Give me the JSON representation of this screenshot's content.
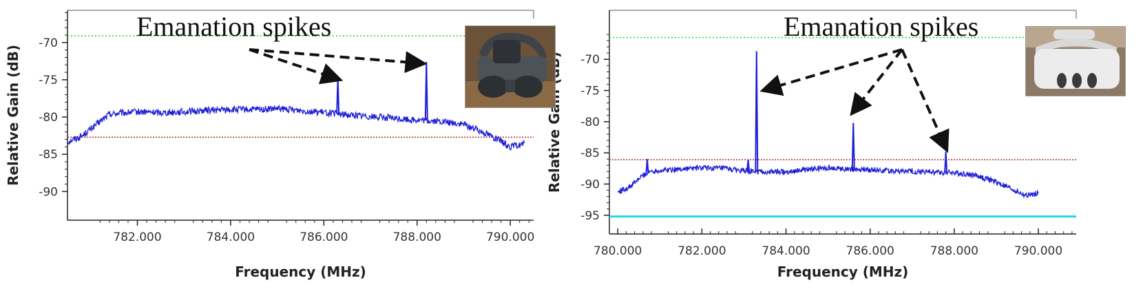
{
  "colors": {
    "trace": "#1f1fd6",
    "max_line": "#19d619",
    "mean_line": "#b5291f",
    "min_line": "#20d8e6",
    "axis": "#222222",
    "frame": "#a9a9a9",
    "annotation": "#111111"
  },
  "chart_data": [
    {
      "type": "line",
      "ylabel": "Relative Gain (dB)",
      "xlabel": "Frequency (MHz)",
      "xlim": [
        780.5,
        790.5
      ],
      "ylim": [
        -92.0,
        -67.8
      ],
      "x_ticks": [
        782,
        784,
        786,
        788,
        790
      ],
      "x_tick_labels": [
        "782.000",
        "784.000",
        "786.000",
        "788.000",
        "790.000"
      ],
      "y_ticks": [
        -90,
        -85,
        -80,
        -75,
        -70
      ],
      "y_tick_labels": [
        "-90",
        "-85",
        "-80",
        "-75",
        "-70"
      ],
      "hlines": {
        "max": -69.1,
        "mean": -82.7
      },
      "baseline": [
        [
          780.5,
          -83.3
        ],
        [
          780.8,
          -82.6
        ],
        [
          781.1,
          -81.1
        ],
        [
          781.4,
          -79.6
        ],
        [
          782.0,
          -79.3
        ],
        [
          782.5,
          -79.4
        ],
        [
          783.0,
          -79.3
        ],
        [
          783.5,
          -79.1
        ],
        [
          784.0,
          -79.0
        ],
        [
          784.5,
          -79.0
        ],
        [
          785.0,
          -78.9
        ],
        [
          785.5,
          -79.1
        ],
        [
          786.0,
          -79.4
        ],
        [
          786.5,
          -79.7
        ],
        [
          787.0,
          -79.9
        ],
        [
          787.5,
          -80.2
        ],
        [
          788.0,
          -80.4
        ],
        [
          788.5,
          -80.6
        ],
        [
          789.0,
          -81.0
        ],
        [
          789.5,
          -82.2
        ],
        [
          789.8,
          -83.3
        ],
        [
          790.0,
          -84.0
        ],
        [
          790.3,
          -83.6
        ]
      ],
      "spikes": [
        {
          "x": 786.3,
          "y": -74.7
        },
        {
          "x": 788.2,
          "y": -72.6
        }
      ],
      "annotation": {
        "text": "Emanation spikes",
        "arrow_targets": [
          [
            786.3,
            -74.9
          ],
          [
            788.1,
            -72.8
          ]
        ]
      },
      "photo": "headset-dark-photo"
    },
    {
      "type": "line",
      "ylabel": "Relative Gain (dB)",
      "xlabel": "Frequency (MHz)",
      "xlim": [
        779.8,
        790.9
      ],
      "ylim": [
        -95.8,
        -66.0
      ],
      "x_ticks": [
        780,
        782,
        784,
        786,
        788,
        790
      ],
      "x_tick_labels": [
        "780.000",
        "782.000",
        "784.000",
        "786.000",
        "788.000",
        "790.000"
      ],
      "y_ticks": [
        -95,
        -90,
        -85,
        -80,
        -75,
        -70
      ],
      "y_tick_labels": [
        "-95",
        "-90",
        "-85",
        "-80",
        "-75",
        "-70"
      ],
      "hlines": {
        "max": -66.5,
        "mean": -86.1,
        "min": -95.2
      },
      "baseline": [
        [
          780.0,
          -91.3
        ],
        [
          780.3,
          -90.4
        ],
        [
          780.6,
          -88.6
        ],
        [
          780.8,
          -87.9
        ],
        [
          781.5,
          -87.6
        ],
        [
          782.0,
          -87.4
        ],
        [
          782.5,
          -87.5
        ],
        [
          783.0,
          -87.9
        ],
        [
          783.5,
          -88.1
        ],
        [
          784.0,
          -88.0
        ],
        [
          784.5,
          -87.7
        ],
        [
          785.0,
          -87.4
        ],
        [
          785.5,
          -87.6
        ],
        [
          786.0,
          -87.7
        ],
        [
          786.5,
          -87.9
        ],
        [
          787.0,
          -88.0
        ],
        [
          787.5,
          -88.1
        ],
        [
          788.0,
          -88.2
        ],
        [
          788.5,
          -88.6
        ],
        [
          789.0,
          -89.7
        ],
        [
          789.4,
          -90.9
        ],
        [
          789.7,
          -91.9
        ],
        [
          790.0,
          -91.4
        ]
      ],
      "spikes": [
        {
          "x": 780.7,
          "y": -86.0
        },
        {
          "x": 783.1,
          "y": -86.1
        },
        {
          "x": 783.3,
          "y": -68.7
        },
        {
          "x": 785.6,
          "y": -80.2
        },
        {
          "x": 787.8,
          "y": -84.8
        }
      ],
      "annotation": {
        "text": "Emanation spikes",
        "arrow_targets": [
          [
            783.5,
            -74.9
          ],
          [
            785.6,
            -78.4
          ],
          [
            787.8,
            -84.2
          ]
        ]
      },
      "photo": "headset-white-photo"
    }
  ]
}
